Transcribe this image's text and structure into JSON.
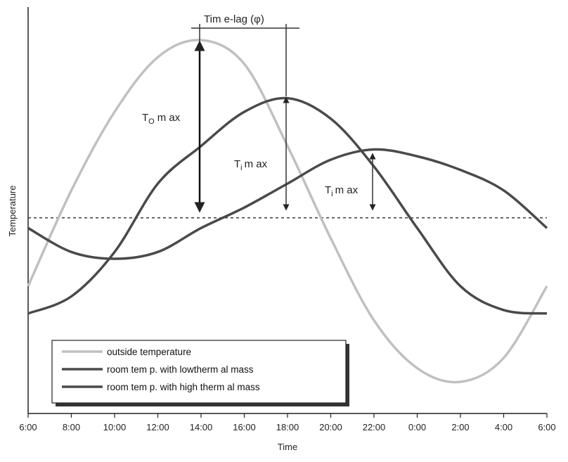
{
  "chart_data": {
    "type": "line",
    "xlabel": "Time",
    "ylabel": "Temperature",
    "x_ticks": [
      "6:00",
      "8:00",
      "10:00",
      "12:00",
      "14:00",
      "16:00",
      "18:00",
      "20:00",
      "22:00",
      "0:00",
      "2:00",
      "4:00",
      "6:00"
    ],
    "x": [
      0,
      1,
      2,
      3,
      4,
      5,
      6,
      7,
      8,
      9,
      10,
      11,
      12
    ],
    "ylim": [
      0,
      100
    ],
    "grid": false,
    "reference_line": {
      "y": 48,
      "style": "dashed"
    },
    "series": [
      {
        "name": "outside temperature",
        "color": "#c0c0c0",
        "values": [
          28,
          56,
          79,
          95,
          100,
          93,
          69,
          42,
          18,
          4,
          0,
          7,
          28
        ]
      },
      {
        "name": "room  tem p. with lowtherm al mass",
        "color": "#4a4a4a",
        "values": [
          20,
          25,
          38,
          58,
          69,
          79,
          83,
          77,
          63,
          45,
          28,
          21,
          20
        ]
      },
      {
        "name": "room  tem p. with high therm al mass",
        "color": "#4a4a4a",
        "values": [
          45,
          38,
          36,
          38,
          45,
          51,
          58,
          65,
          68,
          66,
          62,
          56,
          45
        ]
      }
    ],
    "annotations": {
      "time_lag": "Tim e-lag (φ)",
      "t_o_max": "T",
      "t_o_sub": "O",
      "t_o_rest": "m ax",
      "t_i_max_1": "T",
      "t_i_sub_1": "i",
      "t_i_rest_1": "m ax",
      "t_i_max_2": "T",
      "t_i_sub_2": "i",
      "t_i_rest_2": "m ax"
    },
    "legend_position": "bottom-left"
  }
}
